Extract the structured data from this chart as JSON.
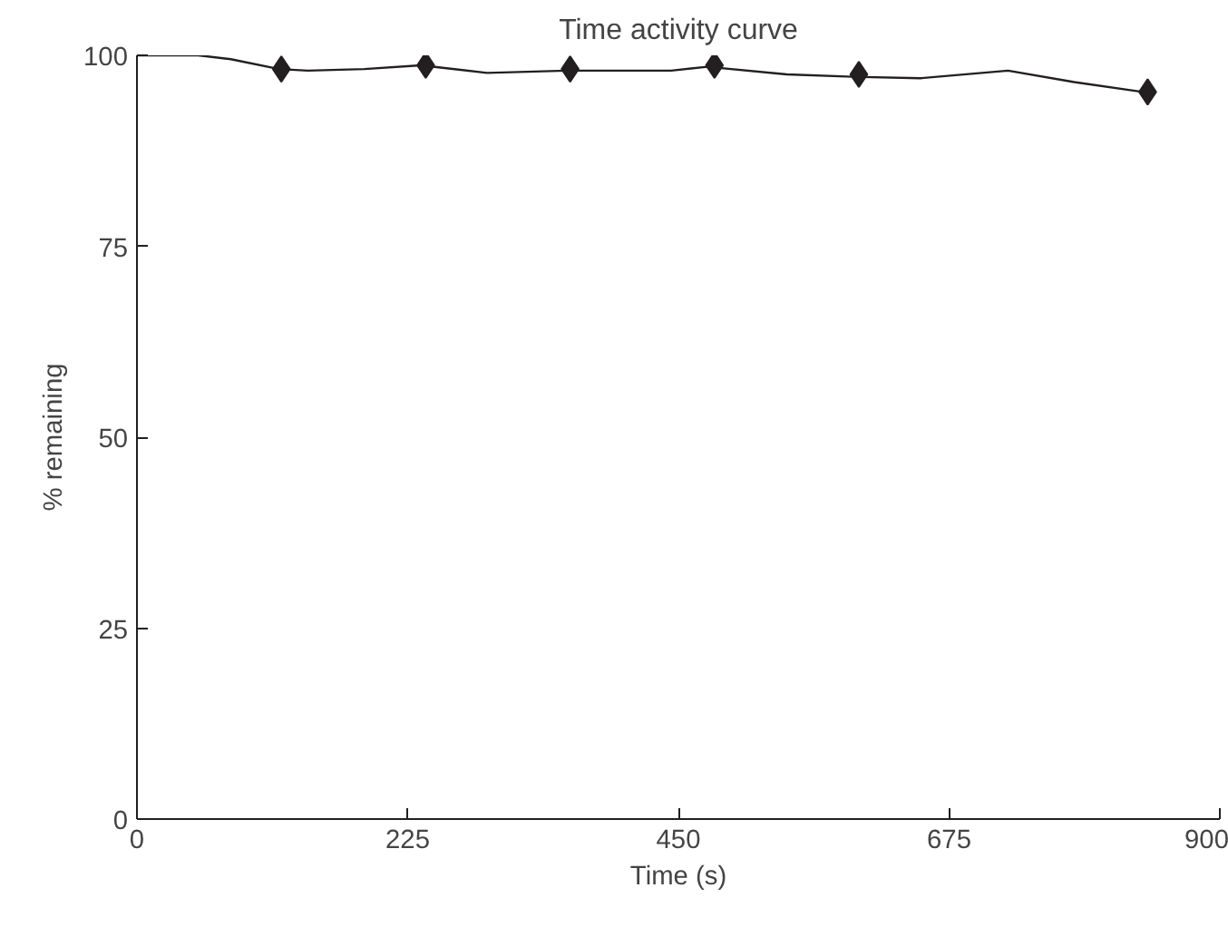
{
  "chart_data": {
    "type": "line",
    "title": "Time activity curve",
    "xlabel": "Time (s)",
    "ylabel": "% remaining",
    "xlim": [
      0,
      900
    ],
    "xticks": [
      0,
      225,
      450,
      675,
      900
    ],
    "ylim": [
      0,
      100
    ],
    "yticks": [
      0,
      25,
      50,
      75,
      100
    ],
    "grid": false,
    "series": [
      {
        "color": "#231f20",
        "marker": "none",
        "x": [
          0,
          24,
          51,
          78,
          118,
          142,
          189,
          236,
          291,
          357,
          444,
          474,
          540,
          595,
          651,
          724,
          779,
          836
        ],
        "values": [
          100,
          100,
          100,
          99.5,
          98.2,
          98,
          98.2,
          98.7,
          97.7,
          98,
          98,
          98.5,
          97.5,
          97.2,
          97,
          98,
          96.5,
          95.2
        ]
      },
      {
        "type": "scatter",
        "color": "#231f20",
        "marker": "diamond",
        "x": [
          120,
          240,
          360,
          480,
          600,
          840
        ],
        "values": [
          98.2,
          98.7,
          98.2,
          98.7,
          97.5,
          95.2
        ]
      }
    ]
  }
}
